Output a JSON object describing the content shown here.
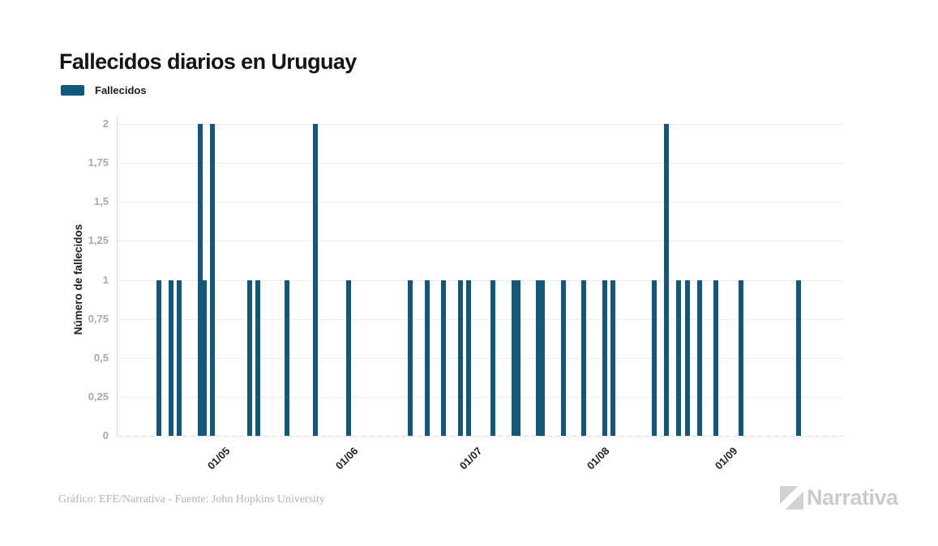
{
  "title": "Fallecidos diarios en Uruguay",
  "legend": {
    "label": "Fallecidos",
    "color": "#12587C"
  },
  "footer": {
    "credit": "Gráfico: EFE/Narrativa - Fuente: John Hopkins University"
  },
  "watermark": {
    "text": "Narrativa"
  },
  "chart_data": {
    "type": "bar",
    "title": "Fallecidos diarios en Uruguay",
    "xlabel": "",
    "ylabel": "Número de fallecidos",
    "ylim": [
      0,
      2
    ],
    "x_range": [
      "2020-04-08",
      "2020-10-01"
    ],
    "grid": true,
    "legend_position": "top-left",
    "bar_color": "#12587C",
    "y_ticks": [
      {
        "value": 0,
        "label": "0"
      },
      {
        "value": 0.25,
        "label": "0,25"
      },
      {
        "value": 0.5,
        "label": "0,5"
      },
      {
        "value": 0.75,
        "label": "0,75"
      },
      {
        "value": 1,
        "label": "1"
      },
      {
        "value": 1.25,
        "label": "1,25"
      },
      {
        "value": 1.5,
        "label": "1,5"
      },
      {
        "value": 1.75,
        "label": "1,75"
      },
      {
        "value": 2,
        "label": "2"
      }
    ],
    "x_ticks": [
      {
        "date": "2020-05-01",
        "label": "01/05"
      },
      {
        "date": "2020-06-01",
        "label": "01/06"
      },
      {
        "date": "2020-07-01",
        "label": "01/07"
      },
      {
        "date": "2020-08-01",
        "label": "01/08"
      },
      {
        "date": "2020-09-01",
        "label": "01/09"
      }
    ],
    "series": [
      {
        "name": "Fallecidos",
        "points": [
          {
            "date": "2020-04-18",
            "value": 1
          },
          {
            "date": "2020-04-21",
            "value": 1
          },
          {
            "date": "2020-04-23",
            "value": 1
          },
          {
            "date": "2020-04-28",
            "value": 2
          },
          {
            "date": "2020-04-29",
            "value": 1
          },
          {
            "date": "2020-05-01",
            "value": 2
          },
          {
            "date": "2020-05-10",
            "value": 1
          },
          {
            "date": "2020-05-12",
            "value": 1
          },
          {
            "date": "2020-05-19",
            "value": 1
          },
          {
            "date": "2020-05-26",
            "value": 2
          },
          {
            "date": "2020-06-03",
            "value": 1
          },
          {
            "date": "2020-06-18",
            "value": 1
          },
          {
            "date": "2020-06-22",
            "value": 1
          },
          {
            "date": "2020-06-26",
            "value": 1
          },
          {
            "date": "2020-06-30",
            "value": 1
          },
          {
            "date": "2020-07-02",
            "value": 1
          },
          {
            "date": "2020-07-08",
            "value": 1
          },
          {
            "date": "2020-07-13",
            "value": 1
          },
          {
            "date": "2020-07-14",
            "value": 1
          },
          {
            "date": "2020-07-19",
            "value": 1
          },
          {
            "date": "2020-07-20",
            "value": 1
          },
          {
            "date": "2020-07-25",
            "value": 1
          },
          {
            "date": "2020-07-30",
            "value": 1
          },
          {
            "date": "2020-08-04",
            "value": 1
          },
          {
            "date": "2020-08-06",
            "value": 1
          },
          {
            "date": "2020-08-16",
            "value": 1
          },
          {
            "date": "2020-08-19",
            "value": 2
          },
          {
            "date": "2020-08-22",
            "value": 1
          },
          {
            "date": "2020-08-24",
            "value": 1
          },
          {
            "date": "2020-08-27",
            "value": 1
          },
          {
            "date": "2020-08-31",
            "value": 1
          },
          {
            "date": "2020-09-06",
            "value": 1
          },
          {
            "date": "2020-09-20",
            "value": 1
          }
        ]
      }
    ]
  }
}
